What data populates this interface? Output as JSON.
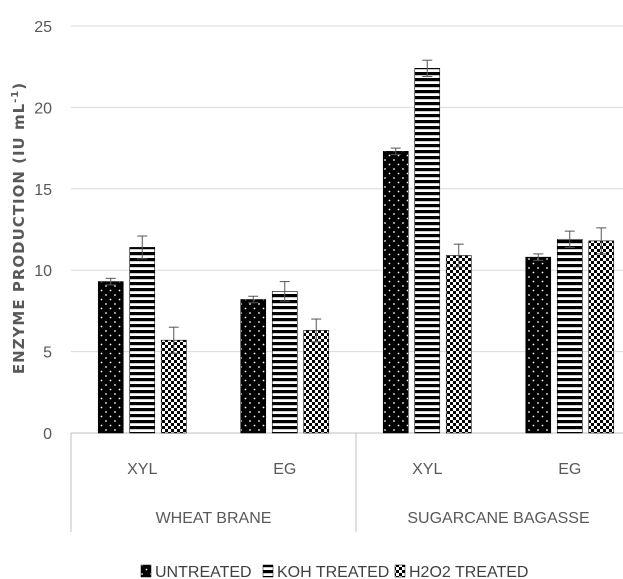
{
  "chart_data": {
    "type": "bar",
    "ylabel": "ENZYME PRODUCTION (IU mL",
    "ylabel_sup": "-1",
    "ylabel_close": ")",
    "ylim": [
      0,
      25
    ],
    "yticks": [
      "0",
      "5",
      "10",
      "15",
      "20",
      "25"
    ],
    "grid": true,
    "legend_position": "bottom",
    "groups": [
      {
        "label": "WHEAT BRANE",
        "categories": [
          "XYL",
          "EG"
        ]
      },
      {
        "label": "SUGARCANE BAGASSE",
        "categories": [
          "XYL",
          "EG"
        ]
      }
    ],
    "series": [
      {
        "name": "UNTREATED",
        "pattern": "dots",
        "values": [
          9.3,
          8.2,
          17.3,
          10.8
        ],
        "errors": [
          0.2,
          0.2,
          0.2,
          0.2
        ]
      },
      {
        "name": "KOH TREATED",
        "pattern": "hstripes",
        "values": [
          11.4,
          8.7,
          22.4,
          11.9
        ],
        "errors": [
          0.7,
          0.6,
          0.5,
          0.5
        ]
      },
      {
        "name": "H2O2 TREATED",
        "pattern": "checker",
        "values": [
          5.7,
          6.3,
          10.9,
          11.8
        ],
        "errors": [
          0.8,
          0.7,
          0.7,
          0.8
        ]
      }
    ],
    "colors": {
      "bar": "#000000",
      "grid": "#d9d9d9",
      "text": "#595959"
    }
  }
}
